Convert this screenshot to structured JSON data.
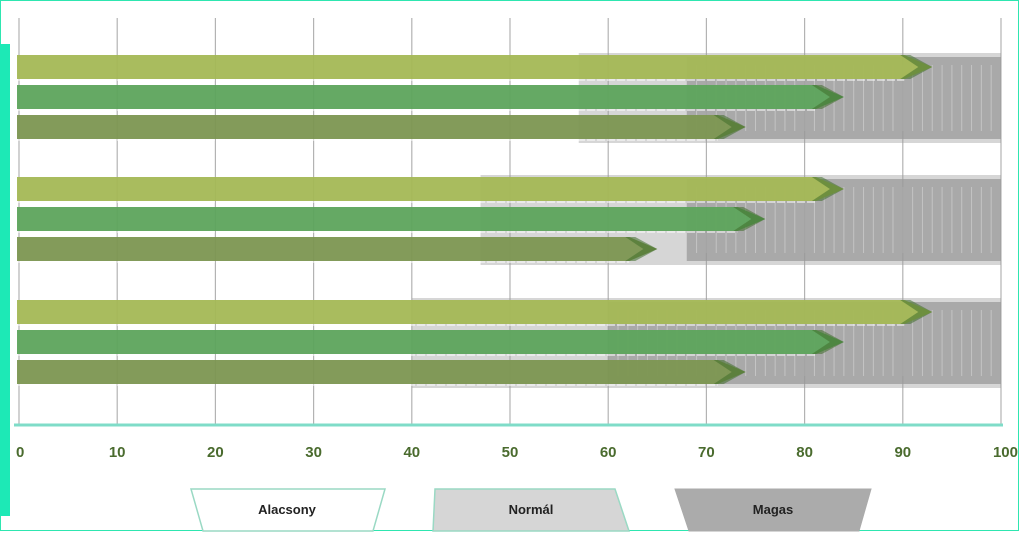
{
  "chart_data": {
    "type": "bar",
    "orientation": "horizontal",
    "xlim": [
      0,
      100
    ],
    "x_ticks": [
      "0",
      "10",
      "20",
      "30",
      "40",
      "50",
      "60",
      "70",
      "80",
      "90",
      "100"
    ],
    "grid": true,
    "groups": [
      {
        "ranges": {
          "low_end": 57,
          "normal_end": 68,
          "high_end": 100
        },
        "values": [
          93,
          84,
          74
        ]
      },
      {
        "ranges": {
          "low_end": 47,
          "normal_end": 68,
          "high_end": 100
        },
        "values": [
          84,
          76,
          65
        ]
      },
      {
        "ranges": {
          "low_end": 40,
          "normal_end": 60,
          "high_end": 100
        },
        "values": [
          93,
          84,
          74
        ]
      }
    ],
    "series_colors": [
      "#a4b855",
      "#5da45c",
      "#7c9651"
    ],
    "legend": {
      "position": "bottom",
      "items": [
        {
          "label": "Alacsony",
          "color": "#ffffff",
          "border": "#9ad9c4"
        },
        {
          "label": "Normál",
          "color": "#d6d6d6",
          "border": "#9ad9c4"
        },
        {
          "label": "Magas",
          "color": "#ababab",
          "border": "#ababab"
        }
      ]
    },
    "colors": {
      "grid": "#9a9a9a",
      "axis": "#7fdcc8",
      "tick_label": "#4a6b2e",
      "accent": "#1de9b6"
    }
  }
}
